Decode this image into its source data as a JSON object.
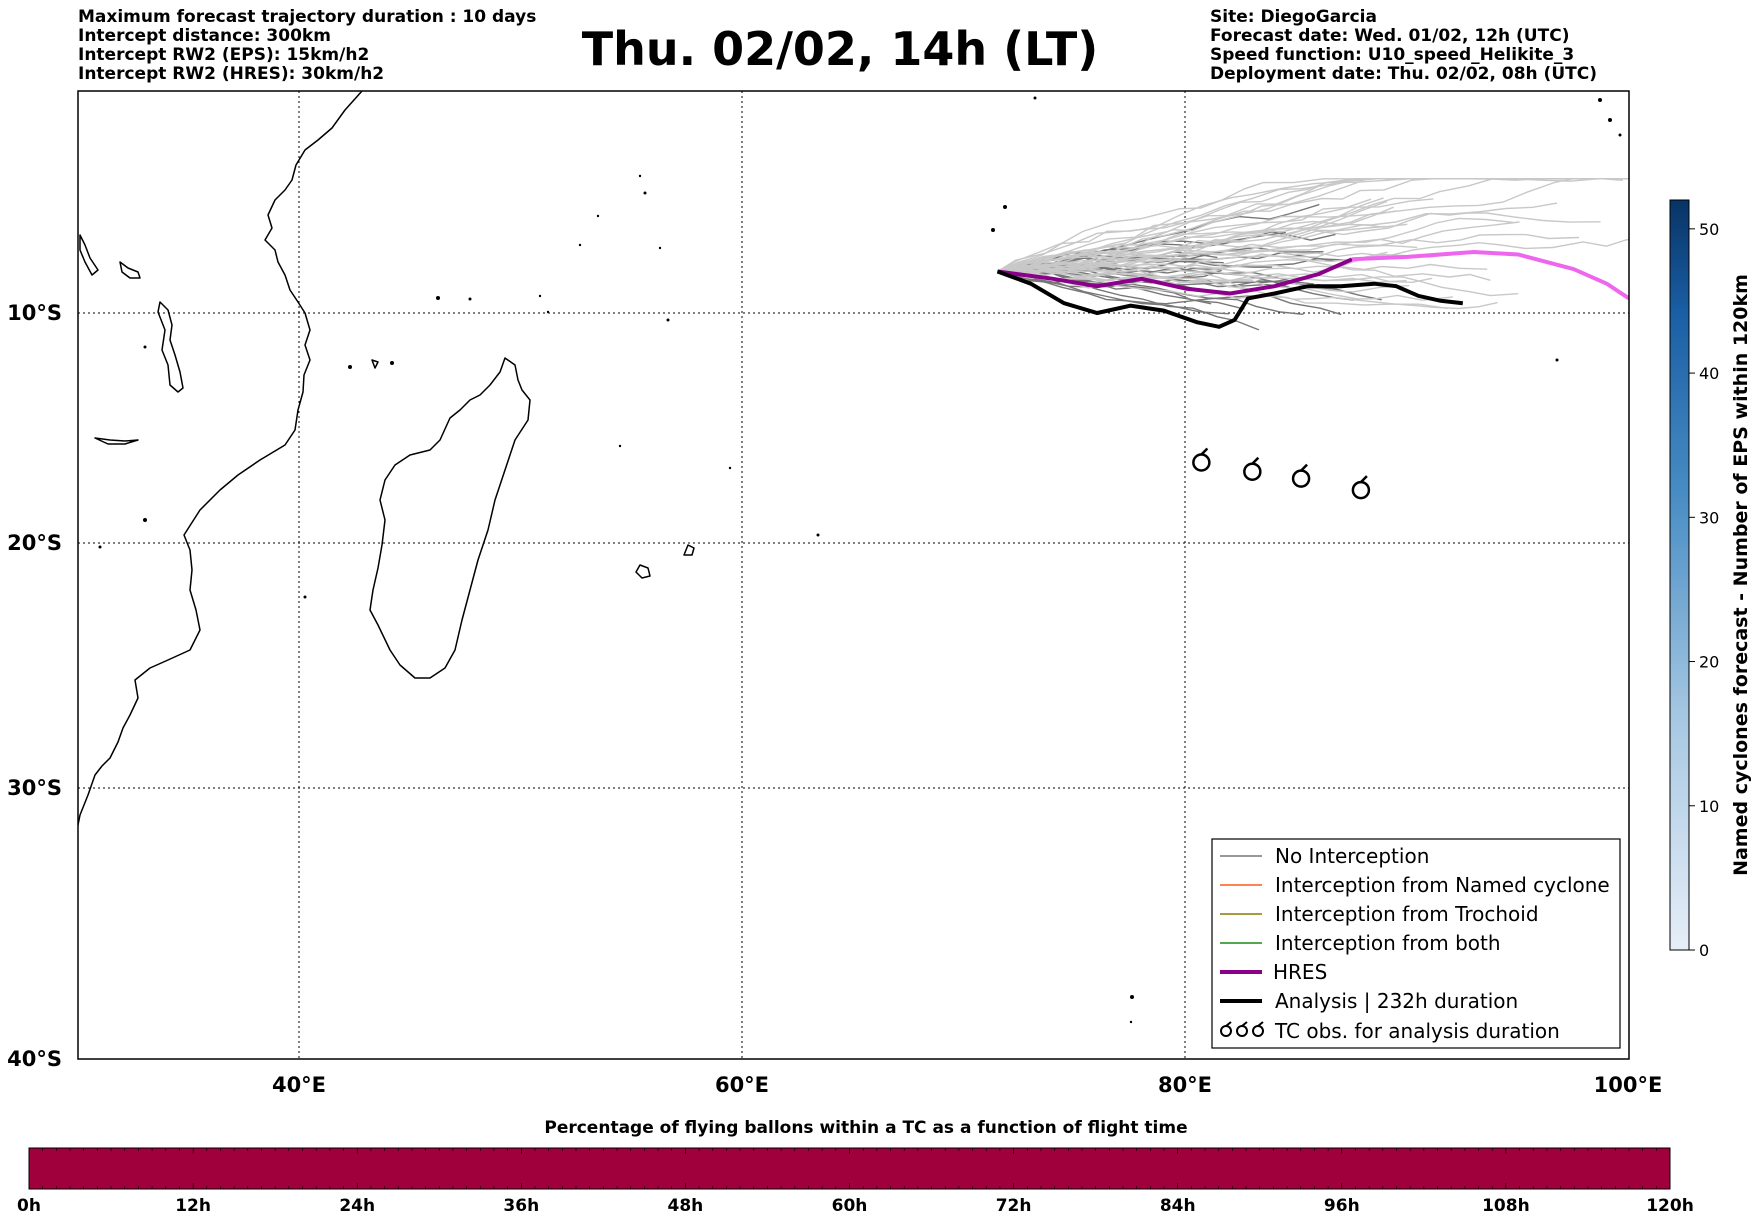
{
  "header": {
    "title": "Thu. 02/02, 14h (LT)",
    "left": [
      "Maximum forecast trajectory duration : 10 days",
      "Intercept distance: 300km",
      "Intercept RW2 (EPS):  15km/h2",
      "Intercept RW2 (HRES): 30km/h2"
    ],
    "right": [
      "Site: DiegoGarcia",
      "Forecast date: Wed. 01/02, 12h (UTC)",
      "Speed function: U10_speed_Helikite_3",
      "Deployment date: Thu. 02/02, 08h (UTC)"
    ]
  },
  "map": {
    "lat_labels": [
      "10°S",
      "20°S",
      "30°S",
      "40°S"
    ],
    "lon_labels": [
      "40°E",
      "60°E",
      "80°E",
      "100°E"
    ],
    "lon_range": [
      30,
      100
    ],
    "lat_range": [
      -40,
      -0.9
    ]
  },
  "legend": {
    "items": [
      {
        "label": "No Interception",
        "color": "#777777",
        "width": 1.5
      },
      {
        "label": "Interception from Named cyclone",
        "color": "#ff5a14",
        "width": 1.5
      },
      {
        "label": "Interception from Trochoid",
        "color": "#8a7a00",
        "width": 1.5
      },
      {
        "label": "Interception from both",
        "color": "#1a8a1a",
        "width": 1.5
      },
      {
        "label": "HRES",
        "color": "#8b008b",
        "width": 4
      },
      {
        "label": "Analysis | 232h duration",
        "color": "#000000",
        "width": 4
      },
      {
        "label": "TC obs. for analysis duration",
        "icon": "cyclone-symbol-icon"
      }
    ]
  },
  "colorbar": {
    "label": "Named cyclones forecast - Number of EPS within 120km",
    "ticks": [
      "0",
      "10",
      "20",
      "30",
      "40",
      "50"
    ],
    "range": [
      0,
      52
    ],
    "color_low": "#e6eef8",
    "color_high": "#083466"
  },
  "bottom_bar": {
    "title": "Percentage of flying ballons within a TC as a function of flight time",
    "ticks": [
      "0h",
      "12h",
      "24h",
      "36h",
      "48h",
      "60h",
      "72h",
      "84h",
      "96h",
      "108h",
      "120h"
    ],
    "color": "#a0003c"
  },
  "chart_data": {
    "type": "map-trajectories",
    "hres_track": [
      [
        71.5,
        -8.3
      ],
      [
        74,
        -8.6
      ],
      [
        76,
        -8.9
      ],
      [
        78,
        -8.6
      ],
      [
        80,
        -9
      ],
      [
        82,
        -9.2
      ],
      [
        84,
        -8.9
      ],
      [
        86,
        -8.4
      ],
      [
        87.5,
        -7.8
      ],
      [
        90,
        -7.7
      ],
      [
        93,
        -7.5
      ],
      [
        95,
        -7.6
      ],
      [
        97.5,
        -8.2
      ],
      [
        99,
        -8.8
      ],
      [
        100,
        -9.4
      ]
    ],
    "analysis_track": [
      [
        71.5,
        -8.3
      ],
      [
        73,
        -8.8
      ],
      [
        74.5,
        -9.6
      ],
      [
        76,
        -10
      ],
      [
        77.5,
        -9.7
      ],
      [
        79,
        -9.9
      ],
      [
        80.5,
        -10.4
      ],
      [
        81.5,
        -10.6
      ],
      [
        82.2,
        -10.3
      ],
      [
        82.8,
        -9.4
      ],
      [
        84,
        -9.2
      ],
      [
        85.5,
        -8.9
      ],
      [
        87,
        -8.9
      ],
      [
        88.5,
        -8.8
      ],
      [
        89.5,
        -8.9
      ],
      [
        90.5,
        -9.3
      ],
      [
        91.5,
        -9.5
      ],
      [
        92.5,
        -9.6
      ]
    ],
    "tc_obs": [
      [
        80.7,
        -16.5
      ],
      [
        83,
        -16.9
      ],
      [
        85.2,
        -17.2
      ],
      [
        87.9,
        -17.7
      ]
    ]
  }
}
